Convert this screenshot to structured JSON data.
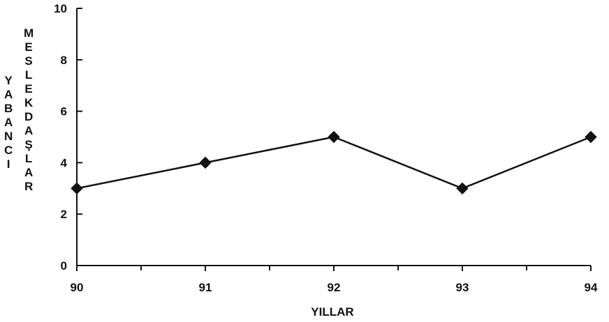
{
  "chart_data": {
    "type": "line",
    "x": [
      "90",
      "91",
      "92",
      "93",
      "94"
    ],
    "series": [
      {
        "values": [
          3,
          4,
          5,
          3,
          5
        ]
      }
    ],
    "ylabel_lines": [
      "YABANCI",
      "MESLEKDAŞLAR"
    ],
    "xlabel": "YILLAR",
    "ylim": [
      0,
      10
    ],
    "yticks": [
      "0",
      "2",
      "4",
      "6",
      "8",
      "10"
    ],
    "grid": false,
    "marker": "diamond",
    "line_color": "#111111"
  }
}
